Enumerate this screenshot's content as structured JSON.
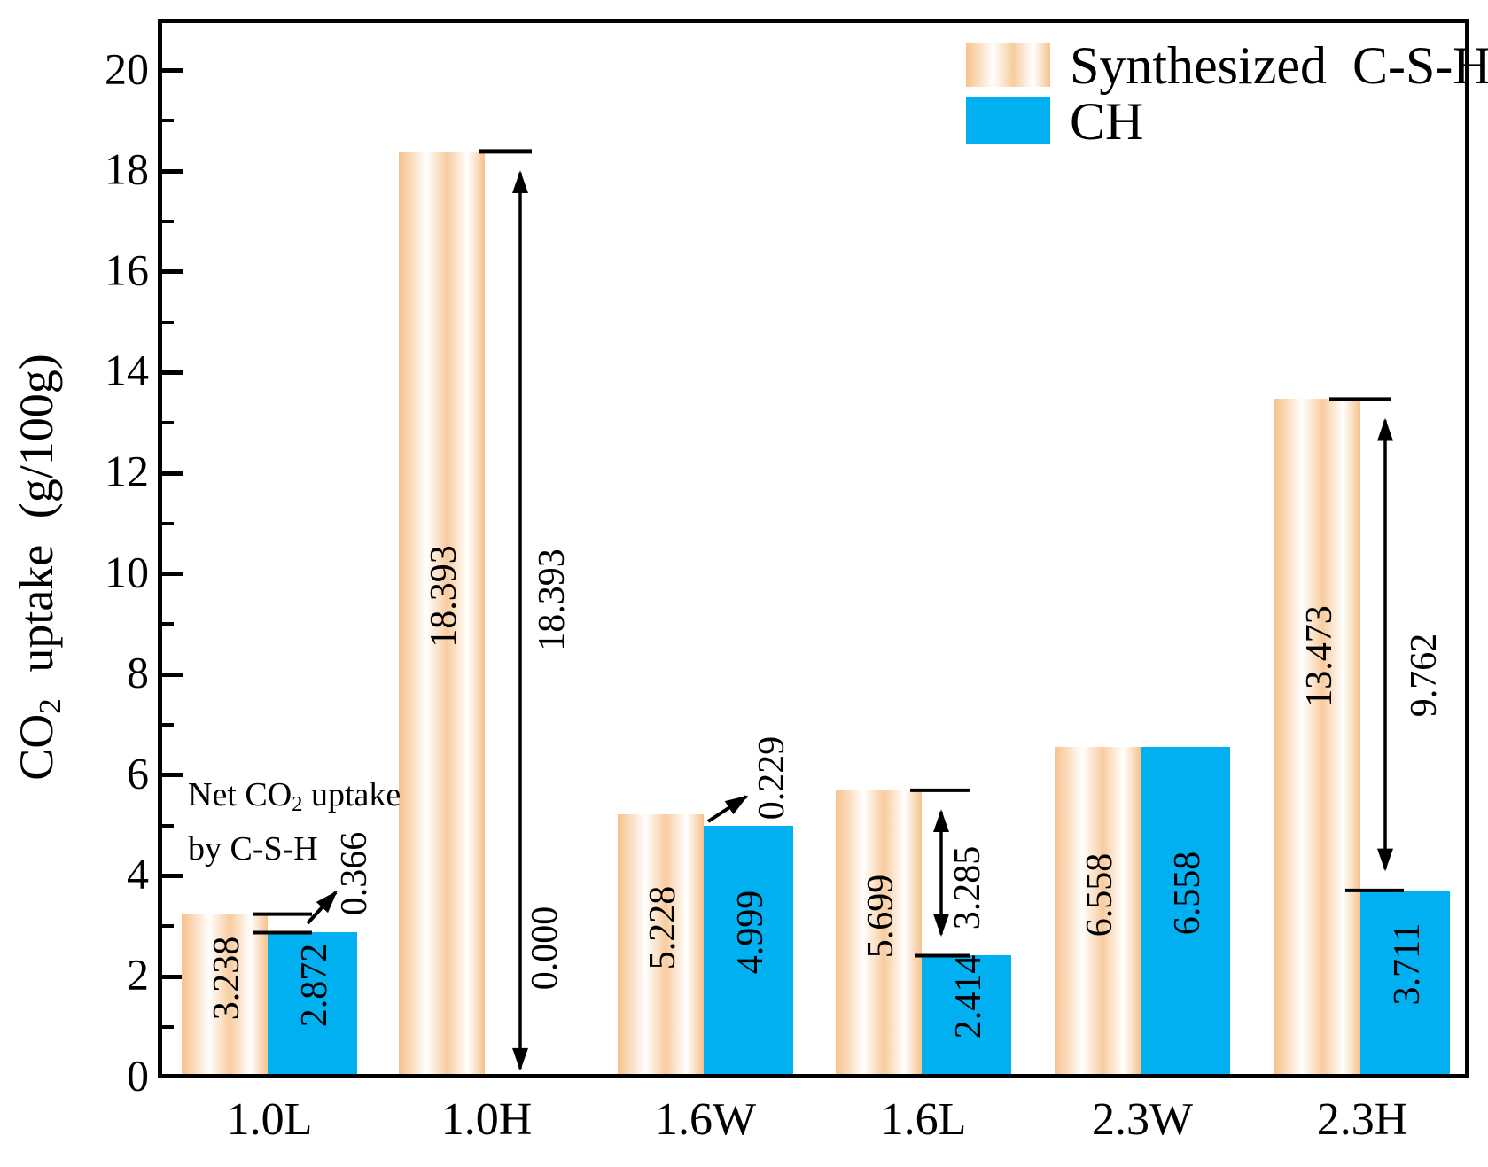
{
  "chart_data": {
    "type": "bar",
    "title": "",
    "xlabel": "",
    "ylabel": "CO2 uptake (g/100g)",
    "ylabel_parts": {
      "pre": "CO",
      "sub": "2",
      "post": " uptake (g/100g)"
    },
    "ylim": [
      0,
      20
    ],
    "y_major_tick_step": 2,
    "y_minor_tick_step": 1,
    "y_tick_labels": [
      "0",
      "2",
      "4",
      "6",
      "8",
      "10",
      "12",
      "14",
      "16",
      "18",
      "20"
    ],
    "grid": false,
    "legend_position": "top-right",
    "categories": [
      "1.0L",
      "1.0H",
      "1.6W",
      "1.6L",
      "2.3W",
      "2.3H"
    ],
    "series": [
      {
        "name": "Synthesized C-S-H",
        "color": "#F6C28C",
        "values": [
          3.238,
          18.393,
          5.228,
          5.699,
          6.558,
          13.473
        ],
        "value_labels": [
          "3.238",
          "18.393",
          "5.228",
          "5.699",
          "6.558",
          "13.473"
        ]
      },
      {
        "name": "CH",
        "color": "#00B0F0",
        "values": [
          2.872,
          0.0,
          4.999,
          2.414,
          6.558,
          3.711
        ],
        "value_labels": [
          "2.872",
          "0.000",
          "4.999",
          "2.414",
          "6.558",
          "3.711"
        ]
      }
    ],
    "difference_annotations": [
      {
        "category": "1.0L",
        "label": "0.366",
        "style": "step-arrow"
      },
      {
        "category": "1.0H",
        "label": "18.393",
        "style": "full-height-double-arrow",
        "extra_label": "0.000"
      },
      {
        "category": "1.6W",
        "label": "0.229",
        "style": "diagonal-arrow"
      },
      {
        "category": "1.6L",
        "label": "3.285",
        "style": "vertical-double-arrow"
      },
      {
        "category": "2.3H",
        "label": "9.762",
        "style": "vertical-double-arrow"
      }
    ],
    "annotation_note": {
      "line1_pre": "Net CO",
      "line1_sub": "2",
      "line1_post": " uptake",
      "line2": "by C-S-H"
    },
    "legend": [
      {
        "label": "Synthesized C-S-H"
      },
      {
        "label": "CH"
      }
    ]
  }
}
